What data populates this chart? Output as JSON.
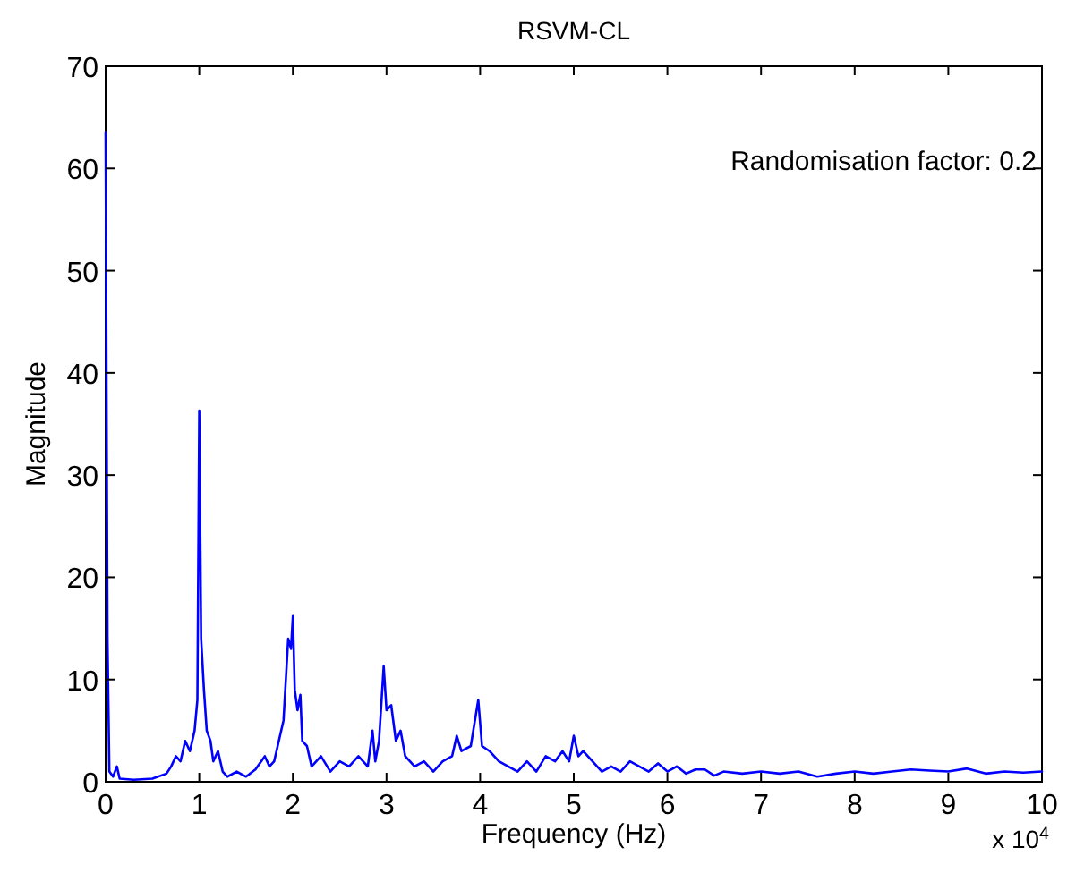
{
  "chart_data": {
    "type": "line",
    "title": "RSVM-CL",
    "xlabel": "Frequency (Hz)",
    "ylabel": "Magnitude",
    "annotations": [
      "Randomisation factor: 0.2",
      "x 10$^{4}$"
    ],
    "xlim": [
      0,
      10
    ],
    "xticks": [
      0,
      1,
      2,
      3,
      4,
      5,
      6,
      7,
      8,
      9,
      10
    ],
    "ylim": [
      0,
      70
    ],
    "yticks": [
      0,
      10,
      20,
      30,
      40,
      50,
      60,
      70
    ],
    "marker": "none",
    "line_style": "solid",
    "series": [
      {
        "color": "#0000ff",
        "x": [
          0,
          0.01,
          0.02,
          0.04,
          0.08,
          0.12,
          0.15,
          0.3,
          0.5,
          0.65,
          0.7,
          0.75,
          0.8,
          0.85,
          0.9,
          0.95,
          0.98,
          1.0,
          1.02,
          1.05,
          1.08,
          1.12,
          1.15,
          1.2,
          1.25,
          1.3,
          1.4,
          1.5,
          1.6,
          1.7,
          1.75,
          1.8,
          1.85,
          1.9,
          1.95,
          1.98,
          2.0,
          2.02,
          2.05,
          2.08,
          2.1,
          2.15,
          2.2,
          2.3,
          2.4,
          2.5,
          2.6,
          2.7,
          2.8,
          2.85,
          2.88,
          2.92,
          2.97,
          3.0,
          3.05,
          3.1,
          3.15,
          3.2,
          3.3,
          3.4,
          3.5,
          3.6,
          3.7,
          3.75,
          3.8,
          3.9,
          3.98,
          4.02,
          4.1,
          4.2,
          4.3,
          4.4,
          4.5,
          4.6,
          4.7,
          4.8,
          4.88,
          4.95,
          5.0,
          5.05,
          5.1,
          5.2,
          5.3,
          5.4,
          5.5,
          5.6,
          5.7,
          5.8,
          5.9,
          6.0,
          6.1,
          6.2,
          6.3,
          6.4,
          6.5,
          6.6,
          6.8,
          7.0,
          7.2,
          7.4,
          7.6,
          7.8,
          8.0,
          8.2,
          8.4,
          8.6,
          8.8,
          9.0,
          9.2,
          9.4,
          9.6,
          9.8,
          10.0
        ],
        "values": [
          63.5,
          38,
          14,
          1,
          0.5,
          1.5,
          0.3,
          0.2,
          0.3,
          0.8,
          1.5,
          2.5,
          2,
          4,
          3,
          5,
          8,
          36.3,
          14,
          9,
          5,
          4,
          2,
          3,
          1,
          0.5,
          1,
          0.5,
          1.2,
          2.5,
          1.5,
          2,
          4,
          6,
          14,
          13,
          16.2,
          9,
          7,
          8.5,
          4,
          3.5,
          1.5,
          2.5,
          1,
          2,
          1.5,
          2.5,
          1.5,
          5,
          2,
          4,
          11.3,
          7,
          7.5,
          4,
          5,
          2.5,
          1.5,
          2,
          1,
          2,
          2.5,
          4.5,
          3,
          3.5,
          8,
          3.5,
          3,
          2,
          1.5,
          1,
          2,
          1,
          2.5,
          2,
          3,
          2,
          4.5,
          2.5,
          3,
          2,
          1,
          1.5,
          1,
          2,
          1.5,
          1,
          1.8,
          1,
          1.5,
          0.8,
          1.2,
          1.2,
          0.6,
          1,
          0.8,
          1,
          0.8,
          1,
          0.5,
          0.8,
          1,
          0.8,
          1,
          1.2,
          1.1,
          1,
          1.3,
          0.8,
          1,
          0.9,
          1
        ]
      }
    ]
  }
}
